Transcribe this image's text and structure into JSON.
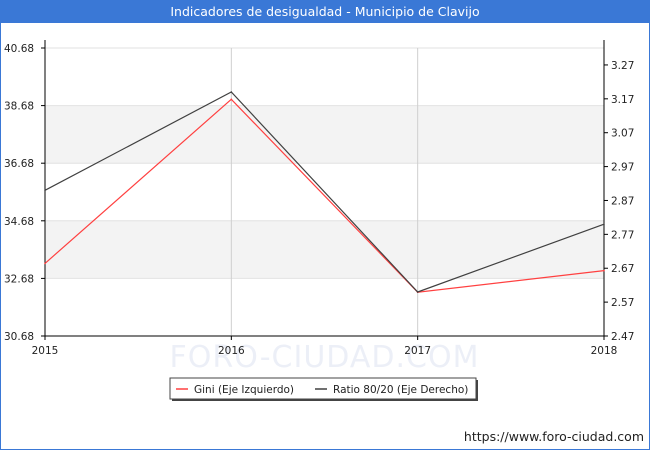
{
  "title": "Indicadores de desigualdad - Municipio de Clavijo",
  "watermark": "FORO-CIUDAD.COM",
  "footer_url": "https://www.foro-ciudad.com",
  "chart_data": {
    "type": "line",
    "x": [
      2015,
      2016,
      2017,
      2018
    ],
    "x_ticks": [
      "2015",
      "2016",
      "2017",
      "2018"
    ],
    "y_left": {
      "ticks": [
        "30.68",
        "32.68",
        "34.68",
        "36.68",
        "38.68",
        "40.68"
      ],
      "range": [
        30.68,
        40.68
      ]
    },
    "y_right": {
      "ticks": [
        "2.47",
        "2.57",
        "2.67",
        "2.77",
        "2.87",
        "2.97",
        "3.07",
        "3.17",
        "3.27"
      ],
      "range": [
        2.47,
        3.32
      ]
    },
    "series": [
      {
        "name": "Gini (Eje Izquierdo)",
        "axis": "left",
        "color": "#ff4040",
        "values": [
          33.2,
          38.9,
          32.2,
          32.95
        ]
      },
      {
        "name": "Ratio 80/20 (Eje Derecho)",
        "axis": "right",
        "color": "#404040",
        "values": [
          2.9,
          3.19,
          2.6,
          2.8
        ]
      }
    ],
    "grid": true,
    "legend": "bottom-center",
    "bands": "alternating light gray horizontal bands"
  }
}
